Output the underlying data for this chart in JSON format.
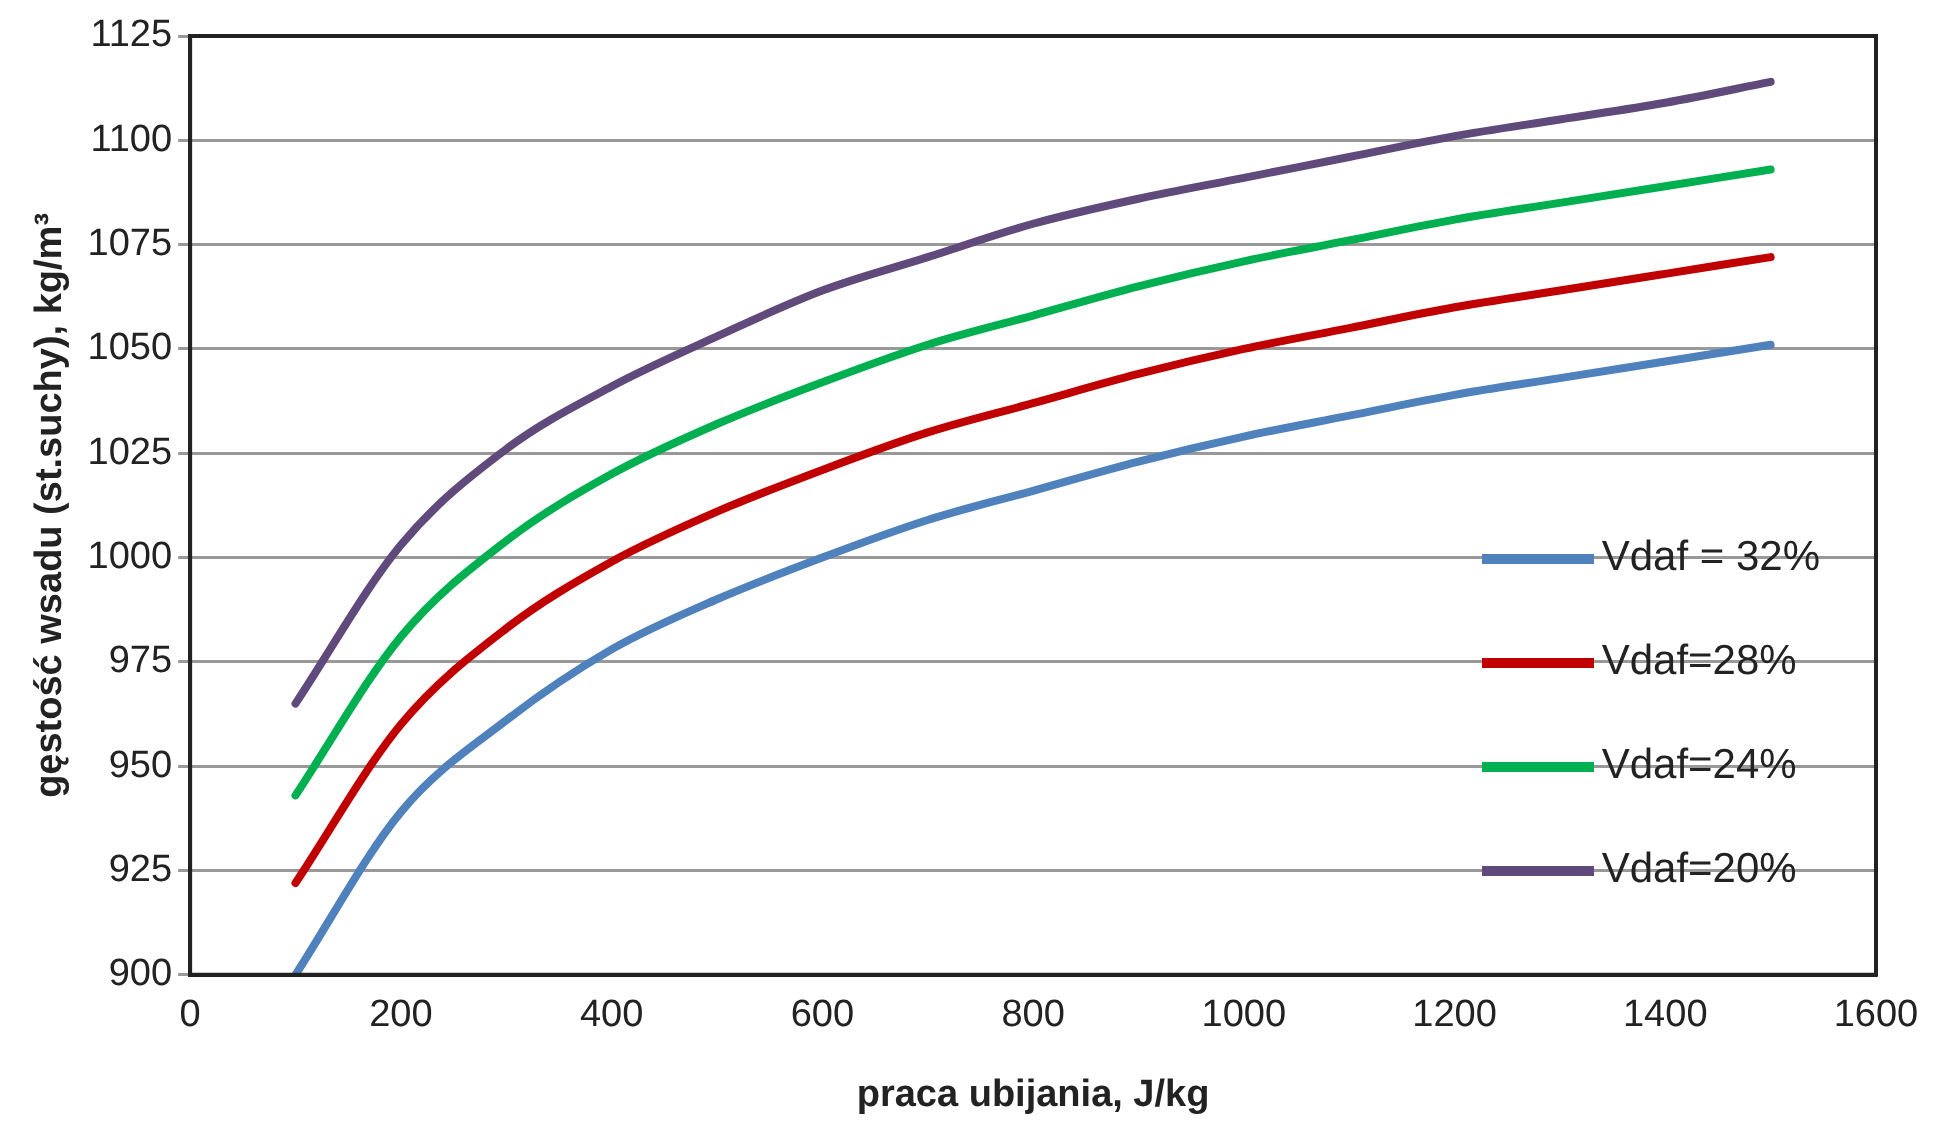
{
  "chart_data": {
    "type": "line",
    "xlabel": "praca ubijania, J/kg",
    "ylabel": "gęstość wsadu (st.suchy), kg/m³",
    "x": [
      100,
      200,
      300,
      400,
      500,
      600,
      700,
      800,
      900,
      1000,
      1100,
      1200,
      1300,
      1400,
      1500
    ],
    "xlim": [
      0,
      1600
    ],
    "xticks": [
      0,
      200,
      400,
      600,
      800,
      1000,
      1200,
      1400,
      1600
    ],
    "ylim": [
      900,
      1125
    ],
    "yticks": [
      900,
      925,
      950,
      975,
      1000,
      1025,
      1050,
      1075,
      1100,
      1125
    ],
    "grid": "y",
    "legend": "bottom right",
    "marker": "none",
    "line_style": "solid",
    "series": [
      {
        "name": "Vdaf = 32%",
        "color": "#4f81bd",
        "values": [
          900,
          939,
          961,
          978,
          990,
          1000,
          1009,
          1016,
          1023,
          1029,
          1034,
          1039,
          1043,
          1047,
          1051
        ]
      },
      {
        "name": "Vdaf=28%",
        "color": "#c00000",
        "values": [
          922,
          960,
          983,
          999,
          1011,
          1021,
          1030,
          1037,
          1044,
          1050,
          1055,
          1060,
          1064,
          1068,
          1072
        ]
      },
      {
        "name": "Vdaf=24%",
        "color": "#00b050",
        "values": [
          943,
          981,
          1004,
          1020,
          1032,
          1042,
          1051,
          1058,
          1065,
          1071,
          1076,
          1081,
          1085,
          1089,
          1093
        ]
      },
      {
        "name": "Vdaf=20%",
        "color": "#604a7b",
        "values": [
          965,
          1003,
          1026,
          1041,
          1053,
          1064,
          1072,
          1080,
          1086,
          1091,
          1096,
          1101,
          1105,
          1109,
          1114
        ]
      }
    ]
  }
}
